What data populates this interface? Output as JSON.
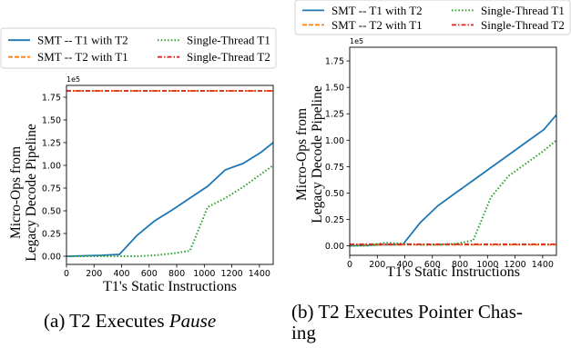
{
  "chart_data": [
    {
      "type": "line",
      "caption_label": "(a) T2 Executes",
      "caption_emph": "Pause",
      "xlabel": "T1's Static Instructions",
      "ylabel_lines": [
        "Micro-Ops from",
        "Legacy Decode Pipeline"
      ],
      "offset_text": "1e5",
      "xlim": [
        0,
        1500
      ],
      "ylim": [
        -0.09,
        1.88
      ],
      "xticks": [
        0,
        200,
        400,
        600,
        800,
        1000,
        1200,
        1400
      ],
      "yticks": [
        0.0,
        0.25,
        0.5,
        0.75,
        1.0,
        1.25,
        1.5,
        1.75
      ],
      "ytick_labels": [
        "0.00",
        "0.25",
        "0.50",
        "0.75",
        "1.00",
        "1.25",
        "1.50",
        "1.75"
      ],
      "legend_position": "top",
      "series": [
        {
          "name": "SMT -- T1 with T2",
          "color": "#1f77b4",
          "style": "solid",
          "x": [
            0,
            128,
            256,
            384,
            512,
            640,
            768,
            896,
            1024,
            1152,
            1280,
            1408,
            1500
          ],
          "y": [
            0.0,
            0.005,
            0.01,
            0.02,
            0.23,
            0.39,
            0.51,
            0.64,
            0.77,
            0.95,
            1.02,
            1.14,
            1.25
          ]
        },
        {
          "name": "SMT -- T2 with T1",
          "color": "#ff7f0e",
          "style": "dashed",
          "x": [
            0,
            1500
          ],
          "y": [
            1.82,
            1.82
          ]
        },
        {
          "name": "Single-Thread T1",
          "color": "#2ca02c",
          "style": "dotted",
          "x": [
            0,
            128,
            256,
            384,
            512,
            640,
            768,
            896,
            1024,
            1152,
            1280,
            1408,
            1500
          ],
          "y": [
            0.0,
            0.0,
            0.0,
            0.0,
            0.0,
            0.01,
            0.03,
            0.06,
            0.54,
            0.64,
            0.76,
            0.9,
            1.0
          ]
        },
        {
          "name": "Single-Thread T2",
          "color": "#d62728",
          "style": "dashdot",
          "x": [
            0,
            1500
          ],
          "y": [
            1.82,
            1.82
          ]
        }
      ]
    },
    {
      "type": "line",
      "caption_label": "(b) T2 Executes Pointer Chas-",
      "caption_line2": "ing",
      "xlabel": "T1's Static Instructions",
      "ylabel_lines": [
        "Micro-Ops from",
        "Legacy Decode Pipeline"
      ],
      "offset_text": "1e5",
      "xlim": [
        0,
        1500
      ],
      "ylim": [
        -0.09,
        1.88
      ],
      "xticks": [
        0,
        200,
        400,
        600,
        800,
        1000,
        1200,
        1400
      ],
      "yticks": [
        0.0,
        0.25,
        0.5,
        0.75,
        1.0,
        1.25,
        1.5,
        1.75
      ],
      "ytick_labels": [
        "0.00",
        "0.25",
        "0.50",
        "0.75",
        "1.00",
        "1.25",
        "1.50",
        "1.75"
      ],
      "legend_position": "top",
      "series": [
        {
          "name": "SMT -- T1 with T2",
          "color": "#1f77b4",
          "style": "solid",
          "x": [
            0,
            128,
            256,
            384,
            512,
            640,
            768,
            896,
            1024,
            1152,
            1280,
            1408,
            1500
          ],
          "y": [
            0.0,
            0.005,
            0.01,
            0.01,
            0.22,
            0.38,
            0.5,
            0.62,
            0.74,
            0.86,
            0.98,
            1.1,
            1.24
          ]
        },
        {
          "name": "SMT -- T2 with T1",
          "color": "#ff7f0e",
          "style": "dashed",
          "x": [
            0,
            1500
          ],
          "y": [
            0.01,
            0.01
          ]
        },
        {
          "name": "Single-Thread T1",
          "color": "#2ca02c",
          "style": "dotted",
          "x": [
            0,
            128,
            256,
            384,
            512,
            640,
            768,
            896,
            1024,
            1152,
            1280,
            1408,
            1500
          ],
          "y": [
            0.0,
            0.0,
            0.03,
            0.02,
            0.01,
            0.01,
            0.02,
            0.05,
            0.46,
            0.66,
            0.78,
            0.9,
            1.0
          ]
        },
        {
          "name": "Single-Thread T2",
          "color": "#d62728",
          "style": "dashdot",
          "x": [
            0,
            1500
          ],
          "y": [
            0.015,
            0.015
          ]
        }
      ]
    }
  ]
}
